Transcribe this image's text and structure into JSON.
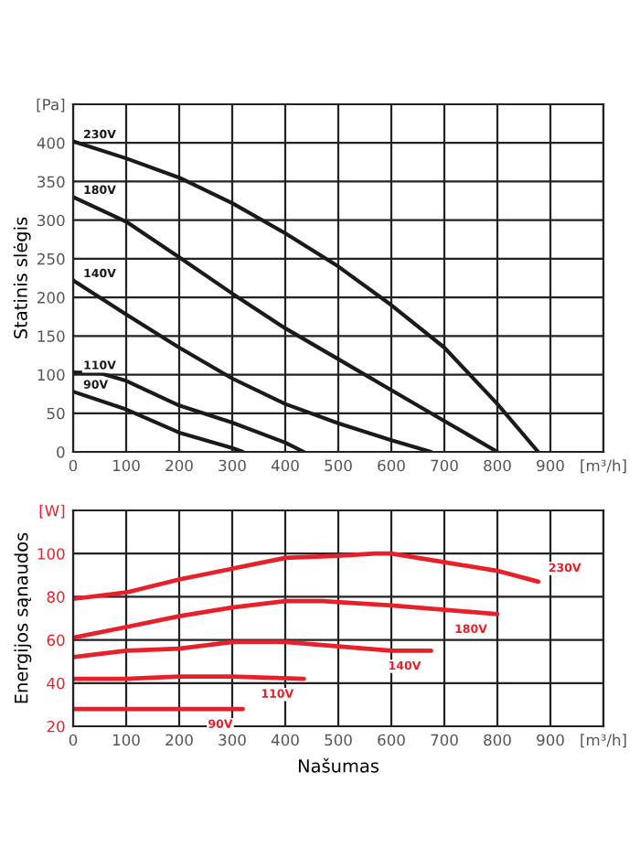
{
  "chart_data": [
    {
      "type": "line",
      "ylabel": "Statinis slėgis",
      "xlim": [
        0,
        1000
      ],
      "ylim": [
        0,
        450
      ],
      "xticks": [
        0,
        100,
        200,
        300,
        400,
        500,
        600,
        700,
        800,
        900,
        {
          "value": 1000,
          "label": "[m³/h]"
        }
      ],
      "yticks": [
        0,
        50,
        100,
        150,
        200,
        250,
        300,
        350,
        400,
        {
          "value": 450,
          "label": "[Pa]"
        }
      ],
      "grid": true,
      "legend": false,
      "marker": "none",
      "line_style": "solid",
      "series": [
        {
          "name": "230V",
          "color": "#1a1a1a",
          "x": [
            0,
            100,
            200,
            300,
            400,
            500,
            600,
            700,
            800,
            877
          ],
          "values": [
            402,
            380,
            355,
            322,
            283,
            240,
            190,
            135,
            62,
            0
          ]
        },
        {
          "name": "180V",
          "color": "#1a1a1a",
          "x": [
            0,
            100,
            200,
            300,
            400,
            500,
            600,
            700,
            800
          ],
          "values": [
            330,
            298,
            252,
            205,
            160,
            120,
            80,
            40,
            0
          ]
        },
        {
          "name": "140V",
          "color": "#1a1a1a",
          "x": [
            0,
            100,
            200,
            300,
            400,
            500,
            600,
            675
          ],
          "values": [
            222,
            178,
            135,
            95,
            62,
            37,
            15,
            0
          ]
        },
        {
          "name": "110V",
          "color": "#1a1a1a",
          "x": [
            0,
            50,
            100,
            200,
            300,
            400,
            435
          ],
          "values": [
            103,
            102,
            92,
            60,
            38,
            12,
            0
          ]
        },
        {
          "name": "90V",
          "color": "#1a1a1a",
          "x": [
            0,
            100,
            200,
            300,
            320
          ],
          "values": [
            78,
            55,
            25,
            5,
            0
          ]
        }
      ]
    },
    {
      "type": "line",
      "xlabel": "Našumas",
      "ylabel": "Energijos sąnaudos",
      "xlim": [
        0,
        1000
      ],
      "ylim": [
        20,
        120
      ],
      "xticks": [
        0,
        100,
        200,
        300,
        400,
        500,
        600,
        700,
        800,
        900,
        {
          "value": 1000,
          "label": "[m³/h]"
        }
      ],
      "yticks": [
        20,
        40,
        60,
        80,
        100,
        {
          "value": 120,
          "label": "[W]"
        }
      ],
      "grid": true,
      "legend": false,
      "marker": "none",
      "line_style": "solid",
      "series": [
        {
          "name": "230V",
          "color": "#e8202a",
          "x": [
            0,
            100,
            200,
            300,
            400,
            500,
            570,
            600,
            700,
            800,
            877
          ],
          "values": [
            79,
            82,
            88,
            93,
            98,
            99,
            100,
            100,
            96,
            92,
            87
          ]
        },
        {
          "name": "180V",
          "color": "#e8202a",
          "x": [
            0,
            100,
            200,
            300,
            400,
            470,
            600,
            700,
            800
          ],
          "values": [
            61,
            66,
            71,
            75,
            78,
            78,
            76,
            74,
            72
          ]
        },
        {
          "name": "140V",
          "color": "#e8202a",
          "x": [
            0,
            100,
            200,
            300,
            400,
            500,
            600,
            675
          ],
          "values": [
            52,
            55,
            56,
            59,
            59,
            57,
            55,
            55
          ]
        },
        {
          "name": "110V",
          "color": "#e8202a",
          "x": [
            0,
            100,
            200,
            250,
            300,
            435
          ],
          "values": [
            42,
            42,
            43,
            43,
            43,
            42
          ]
        },
        {
          "name": "90V",
          "color": "#e8202a",
          "x": [
            0,
            320
          ],
          "values": [
            28,
            28
          ]
        }
      ]
    }
  ]
}
